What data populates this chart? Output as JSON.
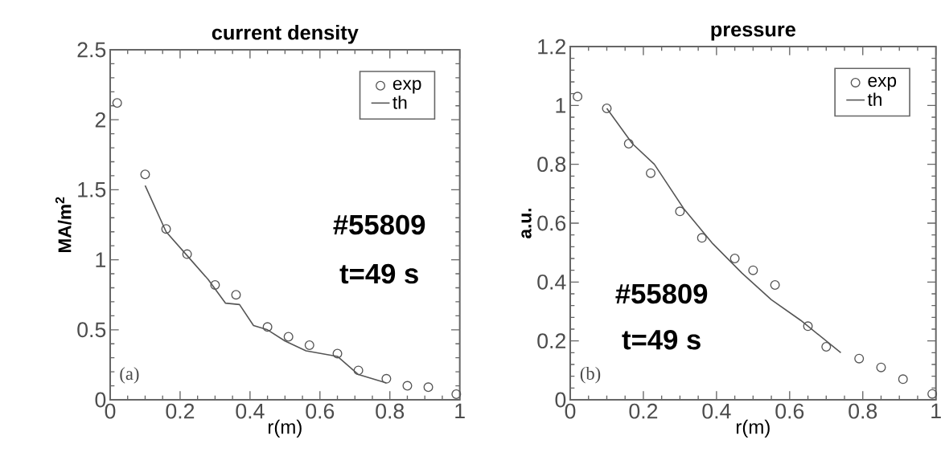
{
  "chart_data": [
    {
      "type": "line",
      "title": "current density",
      "xlabel": "r(m)",
      "ylabel": "MA/m$^{2}$",
      "annotations": [
        "#55809",
        "t=49 s",
        "(a)"
      ],
      "xlim": [
        0,
        1
      ],
      "xticks": [
        0,
        0.2,
        0.4,
        0.6,
        0.8,
        1
      ],
      "ylim": [
        0,
        2.5
      ],
      "yticks": [
        0,
        0.5,
        1,
        1.5,
        2,
        2.5
      ],
      "legend": "top right",
      "grid": false,
      "series": [
        {
          "name": "exp",
          "type": "scatter",
          "marker": "circle",
          "color": "#555555",
          "x": [
            0.02,
            0.1,
            0.16,
            0.22,
            0.3,
            0.36,
            0.45,
            0.51,
            0.57,
            0.65,
            0.71,
            0.79,
            0.85,
            0.91,
            0.99
          ],
          "values": [
            2.12,
            1.61,
            1.22,
            1.04,
            0.82,
            0.75,
            0.52,
            0.45,
            0.39,
            0.33,
            0.21,
            0.15,
            0.1,
            0.09,
            0.04
          ]
        },
        {
          "name": "th",
          "marker": "none",
          "color": "#555555",
          "x": [
            0.1,
            0.16,
            0.22,
            0.28,
            0.33,
            0.37,
            0.41,
            0.45,
            0.5,
            0.56,
            0.65,
            0.71,
            0.79
          ],
          "values": [
            1.53,
            1.2,
            1.03,
            0.86,
            0.69,
            0.68,
            0.53,
            0.5,
            0.42,
            0.35,
            0.31,
            0.18,
            0.12
          ]
        }
      ]
    },
    {
      "type": "line",
      "title": "pressure",
      "xlabel": "r(m)",
      "ylabel": "a.u.",
      "annotations": [
        "#55809",
        "t=49 s",
        "(b)"
      ],
      "xlim": [
        0,
        1
      ],
      "xticks": [
        0,
        0.2,
        0.4,
        0.6,
        0.8,
        1
      ],
      "ylim": [
        0,
        1.2
      ],
      "yticks": [
        0,
        0.2,
        0.4,
        0.6,
        0.8,
        1,
        1.2
      ],
      "legend": "top right",
      "grid": false,
      "series": [
        {
          "name": "exp",
          "type": "scatter",
          "marker": "circle",
          "color": "#555555",
          "x": [
            0.02,
            0.1,
            0.16,
            0.22,
            0.3,
            0.36,
            0.45,
            0.5,
            0.56,
            0.65,
            0.7,
            0.79,
            0.85,
            0.91,
            0.99
          ],
          "values": [
            1.03,
            0.99,
            0.87,
            0.77,
            0.64,
            0.55,
            0.48,
            0.44,
            0.39,
            0.25,
            0.18,
            0.14,
            0.11,
            0.07,
            0.02
          ]
        },
        {
          "name": "th",
          "marker": "none",
          "color": "#555555",
          "x": [
            0.1,
            0.17,
            0.23,
            0.31,
            0.39,
            0.47,
            0.55,
            0.63,
            0.74
          ],
          "values": [
            0.99,
            0.87,
            0.8,
            0.65,
            0.53,
            0.43,
            0.34,
            0.27,
            0.16
          ]
        }
      ]
    }
  ]
}
